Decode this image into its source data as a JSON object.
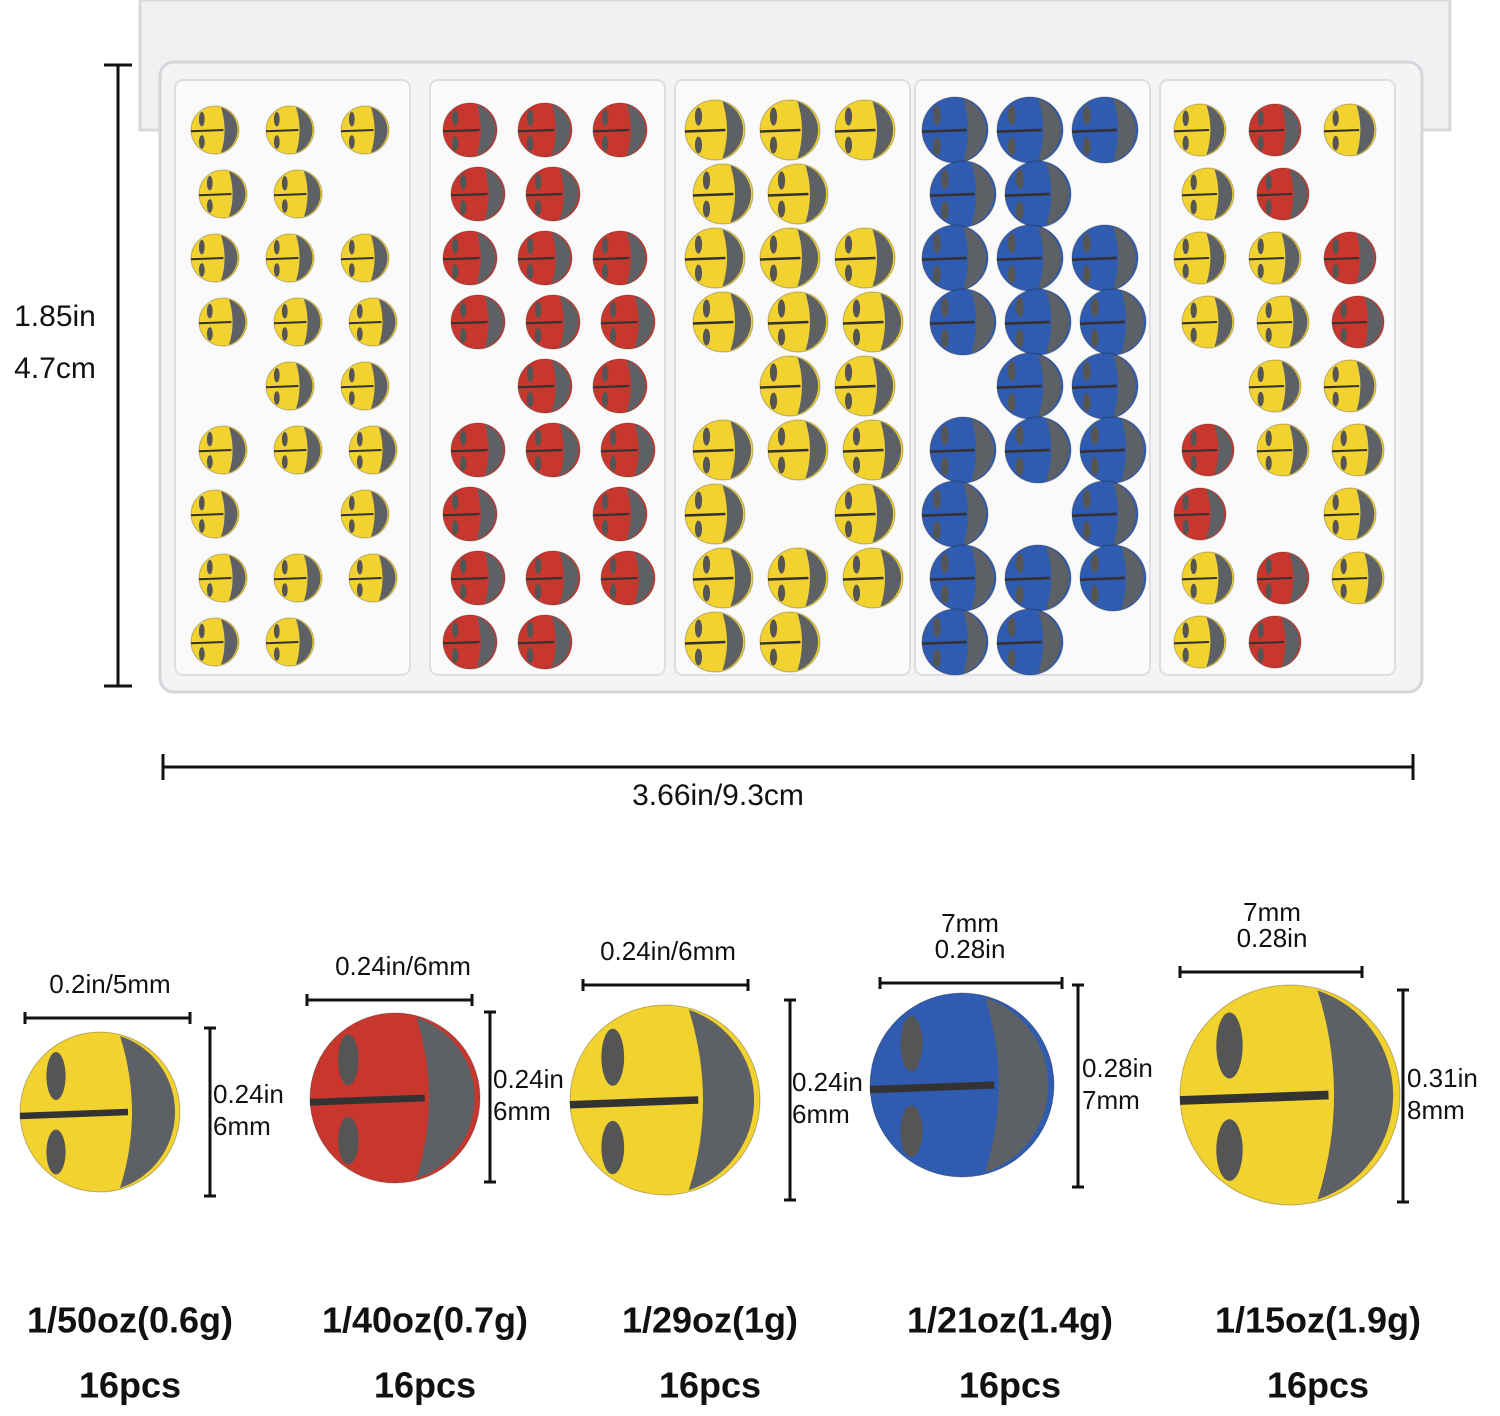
{
  "box": {
    "height_labels": [
      "1.85in",
      "4.7cm"
    ],
    "width_label": "3.66in/9.3cm"
  },
  "items": [
    {
      "width_labels": [
        "0.2in/5mm"
      ],
      "height_labels": [
        "0.24in",
        "6mm"
      ],
      "weight": "1/50oz(0.6g)",
      "count": "16pcs"
    },
    {
      "width_labels": [
        "0.24in/6mm"
      ],
      "height_labels": [
        "0.24in",
        "6mm"
      ],
      "weight": "1/40oz(0.7g)",
      "count": "16pcs"
    },
    {
      "width_labels": [
        "0.24in/6mm"
      ],
      "height_labels": [
        "0.24in",
        "6mm"
      ],
      "weight": "1/29oz(1g)",
      "count": "16pcs"
    },
    {
      "width_labels": [
        "7mm",
        "0.28in"
      ],
      "height_labels": [
        "0.28in",
        "7mm"
      ],
      "weight": "1/21oz(1.4g)",
      "count": "16pcs"
    },
    {
      "width_labels": [
        "7mm",
        "0.28in"
      ],
      "height_labels": [
        "0.31in",
        "8mm"
      ],
      "weight": "1/15oz(1.9g)",
      "count": "16pcs"
    }
  ]
}
